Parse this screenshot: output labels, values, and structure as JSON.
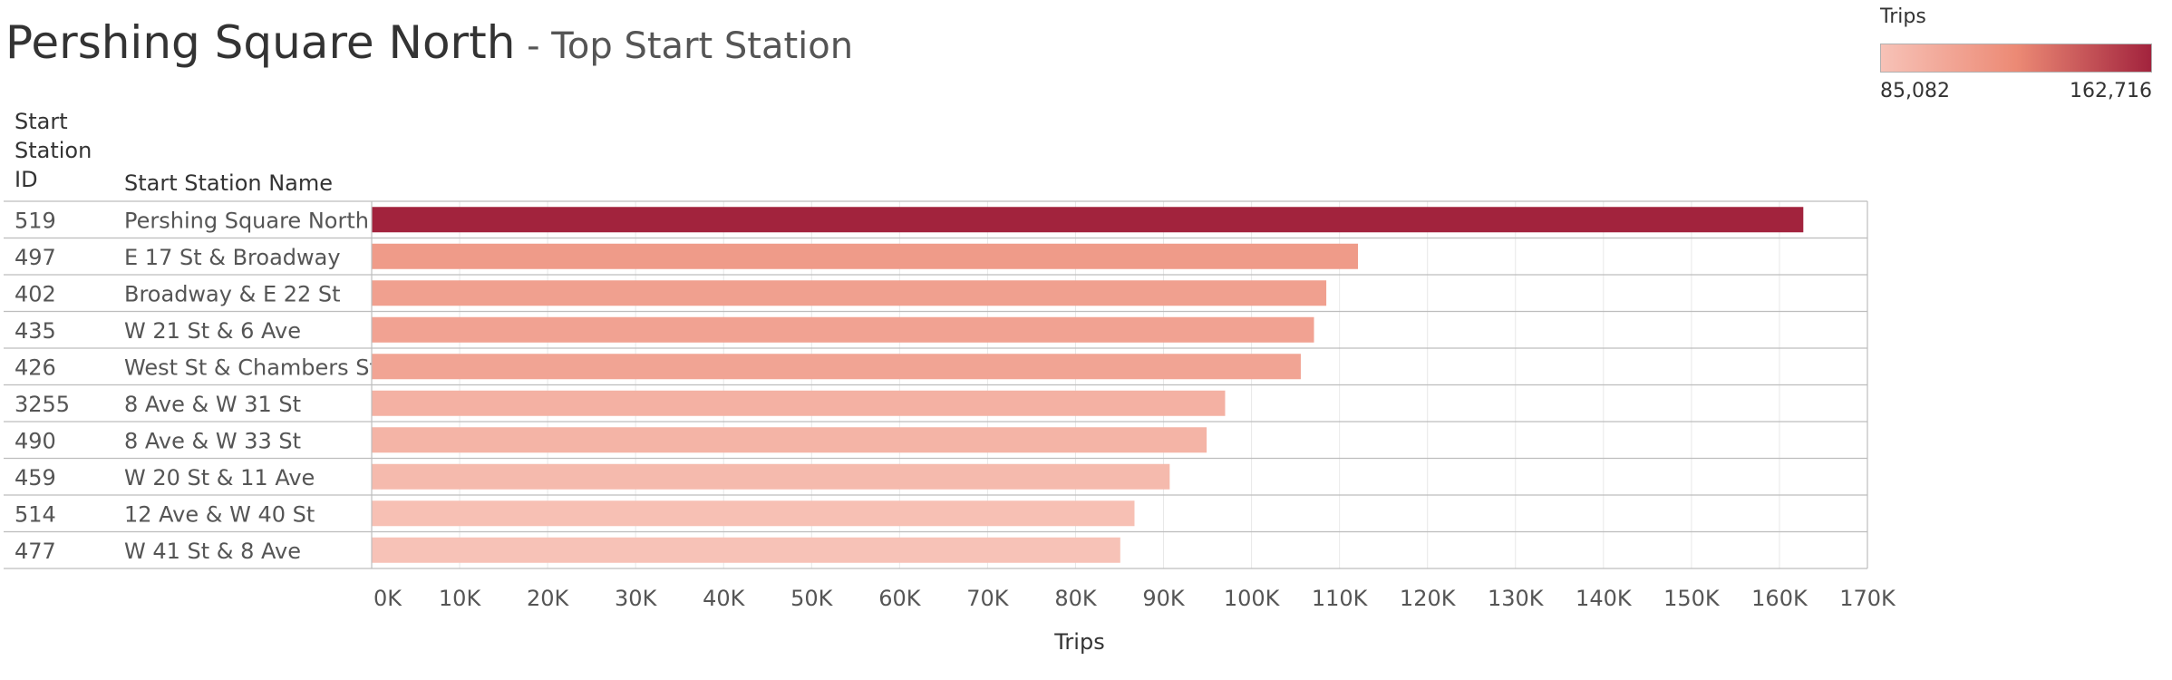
{
  "title": {
    "main": "Pershing Square North",
    "sub": " - Top Start Station"
  },
  "legend": {
    "title": "Trips",
    "min_label": "85,082",
    "max_label": "162,716",
    "color_low": "#f7c2b7",
    "color_mid": "#ec8a75",
    "color_high": "#a2233d"
  },
  "colors": {
    "grid": "#e8e8e8",
    "frame": "#bdbdbd",
    "text": "#333333",
    "tick_text": "#555555"
  },
  "chart_data": {
    "type": "bar",
    "orientation": "horizontal",
    "columns": [
      "Start\nStation\nID",
      "Start Station Name"
    ],
    "rows": [
      {
        "id": "519",
        "name": "Pershing Square North",
        "value": 162716
      },
      {
        "id": "497",
        "name": "E 17 St & Broadway",
        "value": 112100
      },
      {
        "id": "402",
        "name": "Broadway & E 22 St",
        "value": 108500
      },
      {
        "id": "435",
        "name": "W 21 St & 6 Ave",
        "value": 107100
      },
      {
        "id": "426",
        "name": "West St & Chambers St",
        "value": 105600
      },
      {
        "id": "3255",
        "name": "8 Ave & W 31 St",
        "value": 97000
      },
      {
        "id": "490",
        "name": "8 Ave & W 33 St",
        "value": 94900
      },
      {
        "id": "459",
        "name": "W 20 St & 11 Ave",
        "value": 90700
      },
      {
        "id": "514",
        "name": "12 Ave & W 40 St",
        "value": 86700
      },
      {
        "id": "477",
        "name": "W 41 St & 8 Ave",
        "value": 85082
      }
    ],
    "xlabel": "Trips",
    "xlim": [
      0,
      170000
    ],
    "xticks": [
      0,
      10000,
      20000,
      30000,
      40000,
      50000,
      60000,
      70000,
      80000,
      90000,
      100000,
      110000,
      120000,
      130000,
      140000,
      150000,
      160000,
      170000
    ],
    "xtick_labels": [
      "0K",
      "10K",
      "20K",
      "30K",
      "40K",
      "50K",
      "60K",
      "70K",
      "80K",
      "90K",
      "100K",
      "110K",
      "120K",
      "130K",
      "140K",
      "150K",
      "160K",
      "170K"
    ],
    "grid": true
  }
}
